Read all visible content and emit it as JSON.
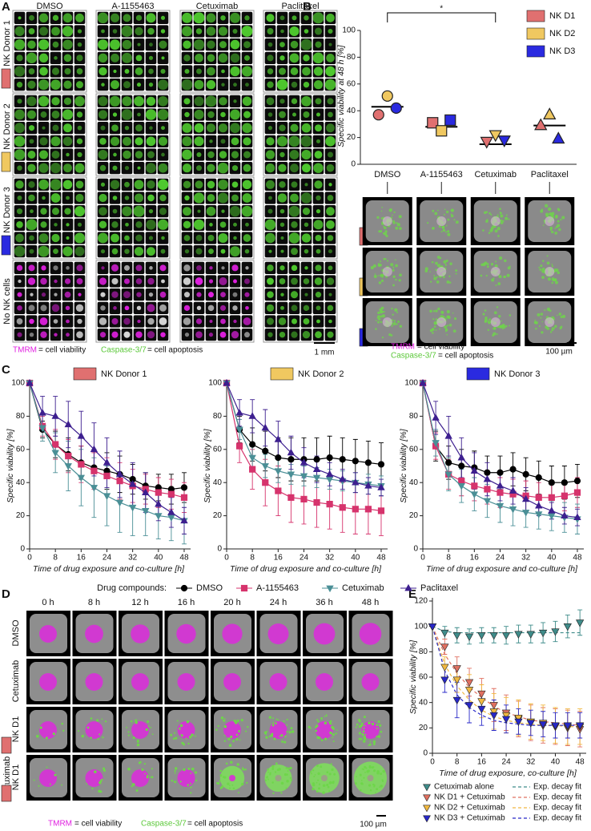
{
  "panel_a": {
    "letter": "A",
    "columns": [
      "DMSO",
      "A-1155463",
      "Cetuximab",
      "Paclitaxel"
    ],
    "rows": [
      "NK Donor 1",
      "NK Donor 2",
      "NK Donor 3",
      "No NK cells"
    ],
    "row_colors": [
      "#e07070",
      "#f0c860",
      "#2a2ae0"
    ],
    "legend": [
      {
        "marker_text": "TMRM",
        "text": "= cell viability",
        "color": "#e020e0"
      },
      {
        "marker_text": "Caspase-3/7",
        "text": "= cell apoptosis",
        "color": "#5cc83a"
      }
    ],
    "scale_bar": "1 mm"
  },
  "panel_b_images": {
    "scale_bar": "100 µm"
  },
  "panel_d": {
    "letter": "D",
    "times": [
      "0 h",
      "8 h",
      "12 h",
      "16 h",
      "20 h",
      "24 h",
      "36 h",
      "48 h"
    ],
    "rows": [
      [
        "DMSO"
      ],
      [
        "Cetuximab"
      ],
      [
        "NK D1"
      ],
      [
        "Cetuximab",
        "NK D1"
      ]
    ],
    "swatch_color": "#e07070",
    "swatch_rows": [
      2,
      3
    ],
    "scale_bar": "100 µm"
  },
  "chart_data": [
    {
      "type": "strip",
      "panel": "B",
      "ylabel": "Specific viability at 48 h [%]",
      "categories": [
        "DMSO",
        "A-1155463",
        "Cetuximab",
        "Paclitaxel"
      ],
      "series": [
        {
          "name": "NK D1",
          "color": "#e07070",
          "marker": "circle-square-down-up",
          "values": [
            37,
            31,
            17,
            29
          ]
        },
        {
          "name": "NK D2",
          "color": "#f0c860",
          "values": [
            51,
            25,
            22,
            37
          ]
        },
        {
          "name": "NK D3",
          "color": "#2a2ae0",
          "values": [
            42,
            33,
            18,
            19
          ]
        }
      ],
      "medians": [
        43,
        28,
        15,
        29
      ],
      "ylim": [
        0,
        100
      ],
      "yticks": [
        0,
        20,
        40,
        60,
        80,
        100
      ],
      "significance": {
        "label": "*",
        "between": [
          "DMSO",
          "Cetuximab"
        ]
      },
      "legend": "upper right"
    },
    {
      "type": "line",
      "panel": "C",
      "xlabel": "Time of drug exposure and co-culture [h]",
      "ylabel": "Specific viability [%]",
      "legend_title": "Drug compounds:",
      "series": [
        {
          "name": "DMSO",
          "color": "#000000",
          "marker": "circle"
        },
        {
          "name": "A-1155463",
          "color": "#d6336c",
          "marker": "square"
        },
        {
          "name": "Cetuximab",
          "color": "#4a8f96",
          "marker": "triangle-down"
        },
        {
          "name": "Paclitaxel",
          "color": "#3d1f8f",
          "marker": "triangle-up"
        }
      ],
      "x": [
        0,
        4,
        8,
        12,
        16,
        20,
        24,
        28,
        32,
        36,
        40,
        44,
        48
      ],
      "xlim": [
        0,
        49
      ],
      "xticks": [
        0,
        8,
        16,
        24,
        32,
        40,
        48
      ],
      "ylim": [
        0,
        100
      ],
      "yticks": [
        0,
        20,
        40,
        60,
        80,
        100
      ],
      "subplots": [
        {
          "title": "NK Donor 1",
          "swatch_color": "#e07070",
          "series": [
            {
              "values": [
                100,
                72,
                63,
                57,
                52,
                49,
                47,
                45,
                42,
                38,
                37,
                36,
                37
              ],
              "errors": [
                0,
                5,
                8,
                10,
                10,
                11,
                11,
                11,
                9,
                8,
                8,
                9,
                9
              ]
            },
            {
              "values": [
                100,
                74,
                63,
                56,
                51,
                47,
                44,
                41,
                38,
                36,
                34,
                33,
                31
              ],
              "errors": [
                0,
                6,
                9,
                10,
                11,
                11,
                11,
                11,
                10,
                9,
                9,
                9,
                9
              ]
            },
            {
              "values": [
                100,
                73,
                58,
                50,
                43,
                37,
                32,
                28,
                25,
                23,
                20,
                19,
                17
              ],
              "errors": [
                0,
                8,
                12,
                15,
                17,
                18,
                18,
                18,
                17,
                15,
                14,
                14,
                14
              ]
            },
            {
              "values": [
                100,
                82,
                80,
                75,
                68,
                60,
                52,
                45,
                39,
                34,
                27,
                22,
                17
              ],
              "errors": [
                0,
                10,
                12,
                14,
                15,
                16,
                15,
                14,
                13,
                12,
                10,
                9,
                8
              ]
            }
          ]
        },
        {
          "title": "NK Donor 2",
          "swatch_color": "#f0c860",
          "series": [
            {
              "values": [
                100,
                72,
                63,
                59,
                55,
                54,
                54,
                54,
                55,
                54,
                53,
                52,
                51
              ],
              "errors": [
                0,
                8,
                10,
                12,
                12,
                13,
                13,
                13,
                13,
                13,
                13,
                13,
                13
              ]
            },
            {
              "values": [
                100,
                62,
                48,
                40,
                35,
                31,
                30,
                28,
                27,
                25,
                24,
                24,
                23
              ],
              "errors": [
                0,
                10,
                12,
                14,
                15,
                15,
                15,
                15,
                15,
                15,
                15,
                15,
                15
              ]
            },
            {
              "values": [
                100,
                72,
                55,
                50,
                47,
                45,
                44,
                43,
                42,
                41,
                40,
                39,
                38
              ],
              "errors": [
                0,
                6,
                7,
                7,
                7,
                6,
                6,
                6,
                6,
                6,
                6,
                6,
                6
              ]
            },
            {
              "values": [
                100,
                82,
                80,
                73,
                66,
                58,
                52,
                48,
                45,
                42,
                40,
                38,
                37
              ],
              "errors": [
                0,
                8,
                10,
                11,
                11,
                10,
                9,
                8,
                7,
                6,
                6,
                5,
                5
              ]
            }
          ]
        },
        {
          "title": "NK Donor 3",
          "swatch_color": "#2a2ae0",
          "series": [
            {
              "values": [
                100,
                62,
                52,
                50,
                49,
                46,
                46,
                48,
                45,
                43,
                40,
                40,
                41
              ],
              "errors": [
                0,
                9,
                10,
                10,
                10,
                10,
                10,
                10,
                10,
                10,
                10,
                10,
                10
              ]
            },
            {
              "values": [
                100,
                62,
                45,
                41,
                38,
                36,
                34,
                33,
                32,
                31,
                31,
                32,
                34
              ],
              "errors": [
                0,
                8,
                9,
                9,
                9,
                9,
                9,
                9,
                9,
                9,
                9,
                9,
                9
              ]
            },
            {
              "values": [
                100,
                64,
                45,
                38,
                33,
                29,
                26,
                24,
                22,
                21,
                20,
                19,
                18
              ],
              "errors": [
                0,
                8,
                10,
                10,
                10,
                10,
                10,
                10,
                9,
                9,
                9,
                9,
                9
              ]
            },
            {
              "values": [
                100,
                79,
                68,
                55,
                47,
                42,
                38,
                35,
                30,
                26,
                23,
                20,
                19
              ],
              "errors": [
                0,
                10,
                12,
                12,
                11,
                10,
                9,
                8,
                7,
                6,
                5,
                5,
                5
              ]
            }
          ]
        }
      ]
    },
    {
      "type": "line",
      "panel": "E",
      "xlabel": "Time of drug exposure, co-culture [h]",
      "ylabel": "Specific viability [%]",
      "x": [
        0,
        4,
        8,
        12,
        16,
        20,
        24,
        28,
        32,
        36,
        40,
        44,
        48
      ],
      "xlim": [
        0,
        49
      ],
      "xticks": [
        0,
        8,
        16,
        24,
        32,
        40,
        48
      ],
      "ylim": [
        0,
        120
      ],
      "yticks": [
        0,
        20,
        40,
        60,
        80,
        100,
        120
      ],
      "series": [
        {
          "name": "Cetuximab alone",
          "color": "#3f8c8a",
          "values": [
            100,
            95,
            93,
            92,
            93,
            93,
            93,
            94,
            94,
            95,
            96,
            100,
            103
          ],
          "errors": [
            0,
            5,
            6,
            6,
            6,
            6,
            7,
            7,
            7,
            8,
            8,
            9,
            10
          ]
        },
        {
          "name": "NK D1 + Cetuximab",
          "color": "#e07060",
          "values": [
            100,
            84,
            67,
            56,
            47,
            38,
            32,
            27,
            24,
            22,
            21,
            20,
            19
          ],
          "errors": [
            0,
            6,
            9,
            11,
            12,
            13,
            14,
            14,
            14,
            14,
            14,
            14,
            14
          ]
        },
        {
          "name": "NK D2 + Cetuximab",
          "color": "#f0b840",
          "values": [
            100,
            68,
            58,
            50,
            41,
            33,
            30,
            28,
            25,
            24,
            22,
            21,
            21
          ],
          "errors": [
            0,
            8,
            10,
            12,
            13,
            14,
            14,
            14,
            14,
            14,
            14,
            14,
            14
          ]
        },
        {
          "name": "NK D3 + Cetuximab",
          "color": "#2828c8",
          "values": [
            100,
            58,
            42,
            38,
            35,
            30,
            27,
            25,
            24,
            23,
            22,
            22,
            22
          ],
          "errors": [
            0,
            10,
            14,
            14,
            13,
            12,
            11,
            10,
            10,
            10,
            10,
            10,
            10
          ]
        }
      ],
      "fits": [
        {
          "name": "Exp. decay fit",
          "color": "#3f8c8a",
          "values": [
            100,
            96,
            95,
            95,
            95,
            95,
            95,
            95,
            95,
            95,
            95,
            95,
            95
          ]
        },
        {
          "name": "Exp. decay fit",
          "color": "#e07060",
          "values": [
            100,
            78,
            63,
            52,
            44,
            37,
            32,
            29,
            26,
            25,
            24,
            23,
            22
          ]
        },
        {
          "name": "Exp. decay fit",
          "color": "#f0b840",
          "values": [
            100,
            70,
            53,
            42,
            34,
            29,
            26,
            24,
            23,
            22,
            22,
            21,
            21
          ]
        },
        {
          "name": "Exp. decay fit",
          "color": "#2828c8",
          "values": [
            100,
            65,
            46,
            36,
            30,
            26,
            24,
            23,
            22,
            22,
            22,
            22,
            22
          ]
        }
      ]
    }
  ]
}
